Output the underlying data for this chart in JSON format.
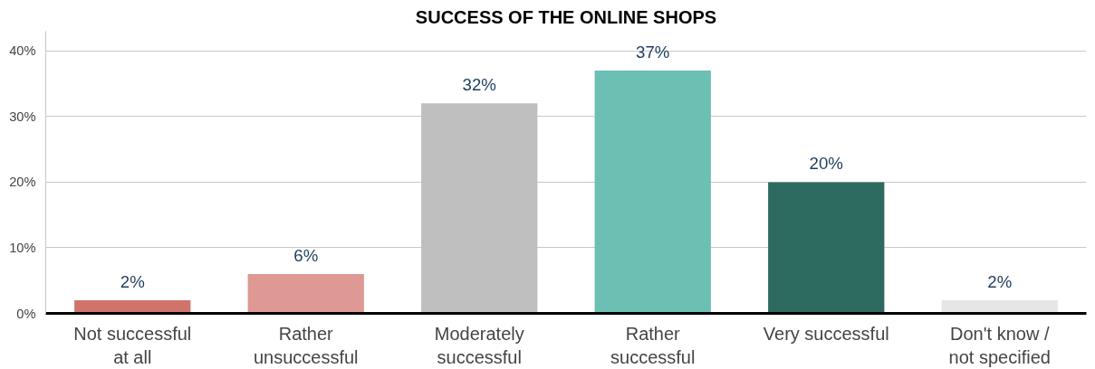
{
  "chart_data": {
    "type": "bar",
    "title": "SUCCESS OF THE ONLINE SHOPS",
    "categories": [
      "Not successful at all",
      "Rather unsuccessful",
      "Moderately successful",
      "Rather successful",
      "Very successful",
      "Don't know / not specified"
    ],
    "values": [
      2,
      6,
      32,
      37,
      20,
      2
    ],
    "value_labels": [
      "2%",
      "6%",
      "32%",
      "37%",
      "20%",
      "2%"
    ],
    "colors": [
      "#d0736d",
      "#de9994",
      "#bfbfbf",
      "#6bbfb3",
      "#2d6a5f",
      "#e6e6e6"
    ],
    "ylim": [
      0,
      43
    ],
    "yticks": [
      {
        "value": 0,
        "label": "0%"
      },
      {
        "value": 10,
        "label": "10%"
      },
      {
        "value": 20,
        "label": "20%"
      },
      {
        "value": 30,
        "label": "30%"
      },
      {
        "value": 40,
        "label": "40%"
      }
    ],
    "grid": "y"
  }
}
